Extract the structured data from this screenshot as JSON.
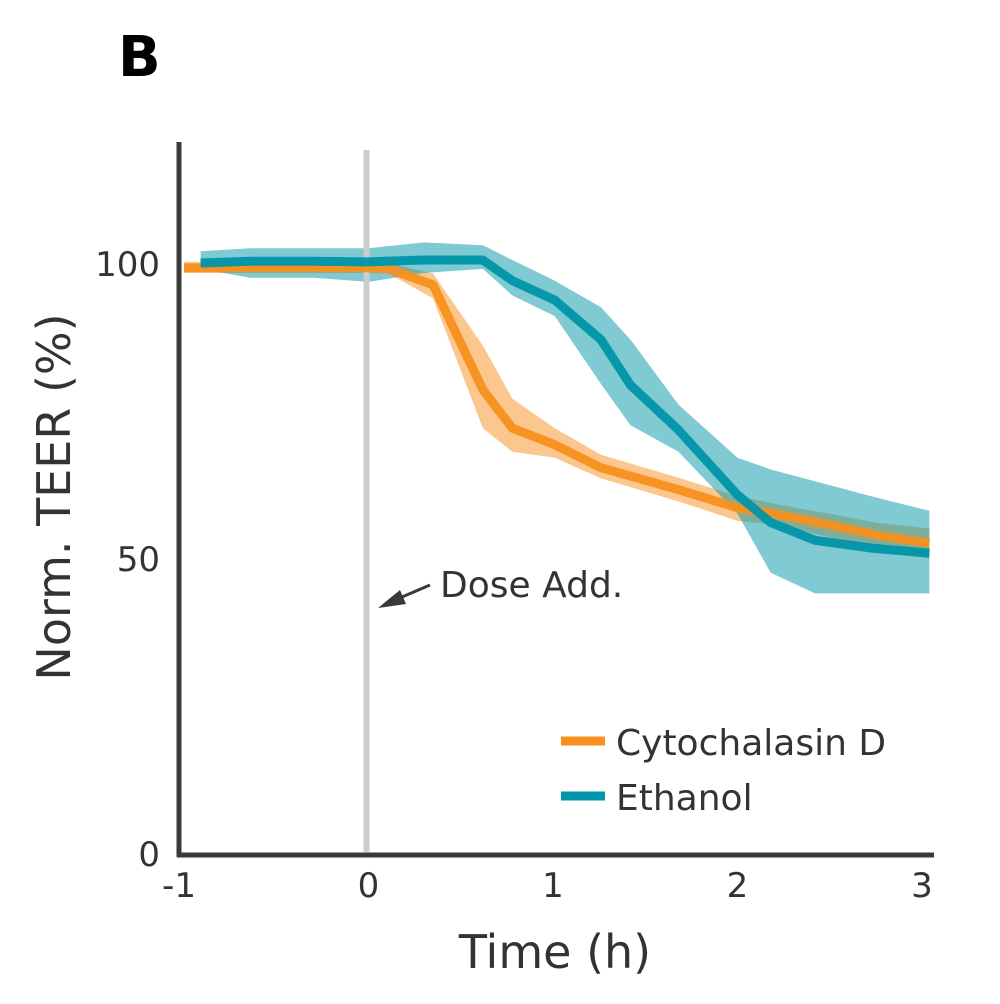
{
  "panel_label": "B",
  "chart_data": {
    "type": "line",
    "xlabel": "Time (h)",
    "ylabel": "Norm. TEER (%)",
    "xlim": [
      -1,
      3
    ],
    "ylim": [
      0,
      120
    ],
    "xticks": [
      "-1",
      "0",
      "1",
      "2",
      "3"
    ],
    "yticks": [
      "0",
      "50",
      "100"
    ],
    "grid": false,
    "legend_position": "bottom-right",
    "annotation": {
      "text": "Dose Add.",
      "x": 0
    },
    "series": [
      {
        "name": "Cytochalasin D",
        "color": "#f7901e",
        "x": [
          -1,
          -0.5,
          0,
          0.11,
          0.35,
          0.62,
          0.78,
          1.01,
          1.26,
          1.69,
          2.0,
          2.23,
          2.5,
          2.75,
          3.04
        ],
        "y": [
          99.2,
          99.2,
          99.2,
          99.0,
          96.3,
          78.5,
          72,
          69.2,
          65.3,
          61.5,
          58.5,
          57.3,
          55.6,
          53.9,
          52.5
        ],
        "lower": [
          98.3,
          98.3,
          98.3,
          98.2,
          94,
          72,
          68,
          67,
          63.5,
          59.5,
          56.3,
          55.5,
          53.5,
          51.5,
          50
        ],
        "upper": [
          100.2,
          100.2,
          100.2,
          100,
          98.2,
          86,
          77,
          72,
          67.5,
          63.5,
          60.5,
          59,
          57.5,
          56,
          55
        ]
      },
      {
        "name": "Ethanol",
        "color": "#0095a8",
        "x": [
          -0.91,
          -0.64,
          -0.3,
          0,
          0.3,
          0.62,
          0.78,
          1.01,
          1.26,
          1.42,
          1.68,
          2.0,
          2.18,
          2.42,
          2.72,
          3.04
        ],
        "y": [
          100,
          100.3,
          100.3,
          100.2,
          100.5,
          100.5,
          97,
          93.7,
          87,
          79.3,
          71.7,
          60.7,
          56,
          53,
          51.7,
          50.8
        ],
        "lower": [
          99,
          97.5,
          97.5,
          96.8,
          98.3,
          99,
          94.5,
          91,
          79.5,
          72.5,
          68,
          57.5,
          47.5,
          44,
          44,
          44
        ],
        "upper": [
          102,
          102.5,
          102.5,
          102.5,
          103.5,
          103,
          100.5,
          97,
          92.5,
          87,
          76,
          67,
          65,
          63,
          60.5,
          58
        ]
      }
    ]
  }
}
